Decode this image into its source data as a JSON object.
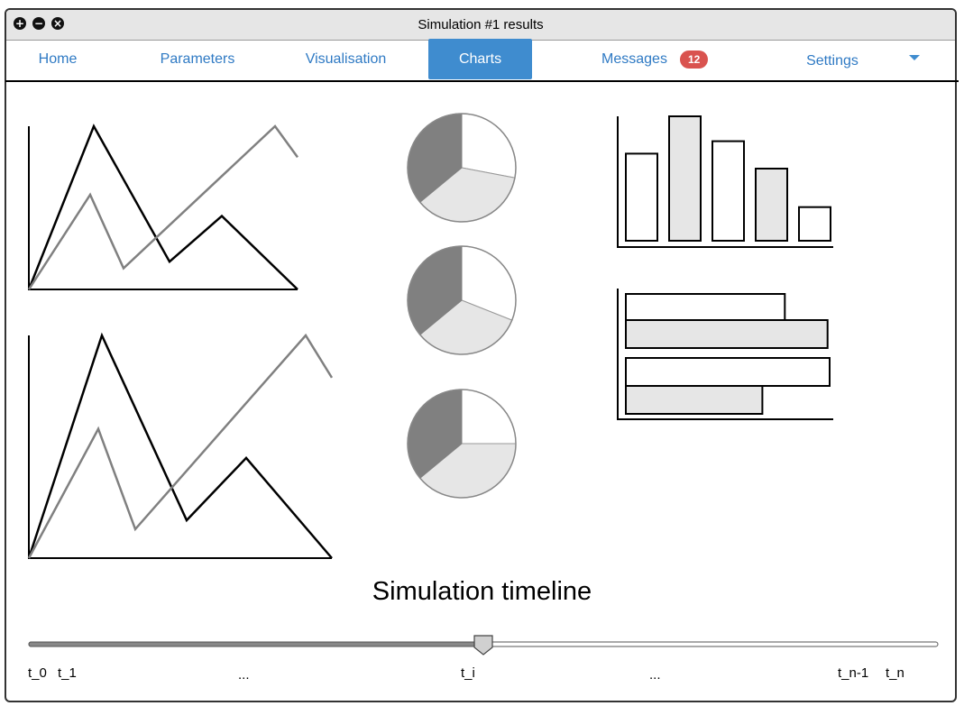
{
  "window": {
    "title": "Simulation #1 results"
  },
  "nav": {
    "tabs": [
      {
        "label": "Home"
      },
      {
        "label": "Parameters"
      },
      {
        "label": "Visualisation"
      },
      {
        "label": "Charts"
      },
      {
        "label": "Messages",
        "badge": "12"
      },
      {
        "label": "Settings"
      }
    ],
    "active_tab": "Charts"
  },
  "timeline": {
    "title": "Simulation timeline",
    "ticks": [
      "t_0",
      "t_1",
      "...",
      "t_i",
      "...",
      "t_n-1",
      "t_n"
    ],
    "position": 0.5
  },
  "colors": {
    "accent": "#3f8ccf",
    "badge": "#d9534f",
    "series_dark": "#000000",
    "series_light": "#808080",
    "fill_dark": "#808080",
    "fill_light": "#e6e6e6"
  },
  "chart_data": [
    {
      "type": "line",
      "x": [
        0,
        1,
        2,
        3,
        4
      ],
      "series": [
        {
          "values": [
            0,
            10,
            1.7,
            4.5,
            0
          ]
        },
        {
          "values": [
            0,
            5.8,
            1.3,
            10,
            8.1
          ]
        }
      ]
    },
    {
      "type": "line",
      "x": [
        0,
        1,
        2,
        3,
        4
      ],
      "series": [
        {
          "values": [
            0,
            10,
            1.7,
            4.5,
            0
          ]
        },
        {
          "values": [
            0,
            5.8,
            1.3,
            10,
            8.1
          ]
        }
      ]
    },
    {
      "type": "pie",
      "values": [
        28,
        36,
        36
      ]
    },
    {
      "type": "pie",
      "values": [
        31,
        33,
        36
      ]
    },
    {
      "type": "pie",
      "values": [
        25,
        39,
        36
      ]
    },
    {
      "type": "bar",
      "values": [
        70,
        100,
        80,
        58,
        27
      ]
    },
    {
      "type": "bar",
      "orientation": "horizontal",
      "values": [
        78,
        99,
        100,
        67
      ]
    }
  ]
}
